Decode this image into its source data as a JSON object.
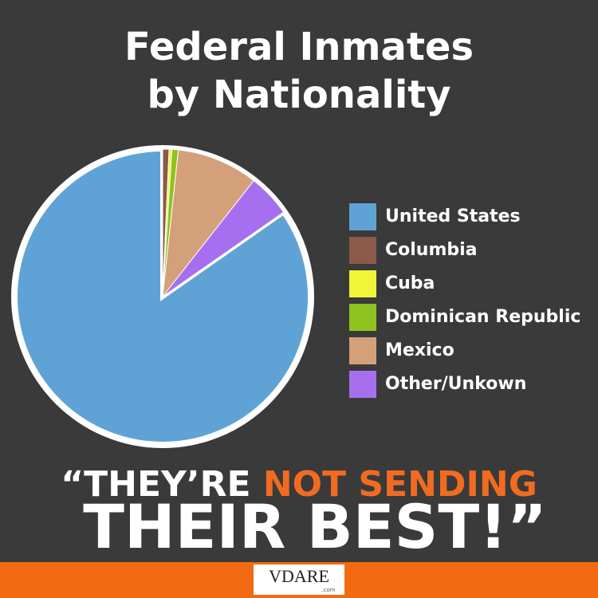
{
  "chart_data": {
    "type": "pie",
    "title": [
      "Federal Inmates",
      "by Nationality"
    ],
    "categories": [
      "United States",
      "Columbia",
      "Cuba",
      "Dominican Republic",
      "Mexico",
      "Other/Unkown"
    ],
    "values": [
      84.7,
      0.7,
      0.3,
      0.7,
      8.9,
      4.7
    ],
    "colors": [
      "#5fa3d6",
      "#8b5a4a",
      "#f0f53a",
      "#8fc31f",
      "#d4a07a",
      "#a66ff0"
    ],
    "legend": "right"
  },
  "slogan": {
    "line1_white": "“THEY’RE ",
    "line1_orange": "NOT SENDING",
    "line2": "THEIR BEST!”"
  },
  "footer": {
    "logo": "VDARE",
    "logo_sub": ".com"
  }
}
